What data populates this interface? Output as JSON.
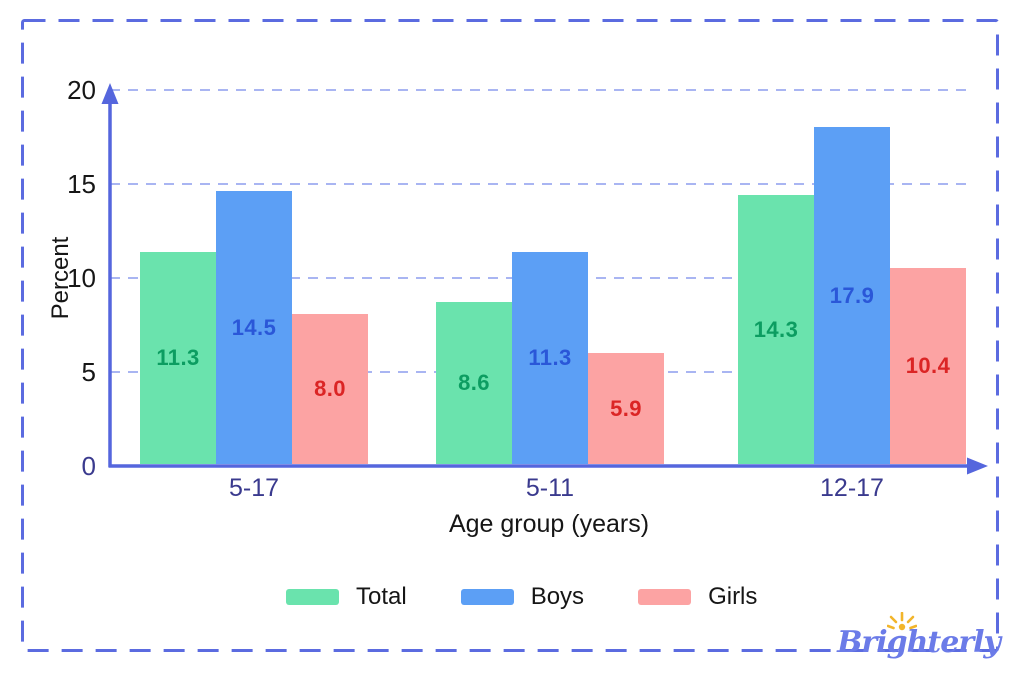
{
  "chart_data": {
    "type": "bar",
    "title": "",
    "xlabel": "Age group (years)",
    "ylabel": "Percent",
    "categories": [
      "5-17",
      "5-11",
      "12-17"
    ],
    "series": [
      {
        "name": "Total",
        "color": "#6AE3AD",
        "label_color": "#0C9D61",
        "values": [
          11.3,
          8.6,
          14.3
        ],
        "value_labels": [
          "11.3",
          "8.6",
          "14.3"
        ]
      },
      {
        "name": "Boys",
        "color": "#5C9FF5",
        "label_color": "#2A57D8",
        "values": [
          14.5,
          11.3,
          17.9
        ],
        "value_labels": [
          "14.5",
          "11.3",
          "17.9"
        ]
      },
      {
        "name": "Girls",
        "color": "#FCA3A3",
        "label_color": "#DB2525",
        "values": [
          8.0,
          5.9,
          10.4
        ],
        "value_labels": [
          "8.0",
          "5.9",
          "10.4"
        ]
      }
    ],
    "y_ticks": [
      0,
      5,
      10,
      15,
      20
    ],
    "ylim": [
      0,
      20
    ],
    "grid": "horizontal dashed gridlines at 5, 10, 15, 20",
    "legend_position": "bottom"
  },
  "colors": {
    "axis": "#5566DD",
    "grid": "#A9B5F2",
    "frame_border": "#5B6BE0",
    "tick_label": "#161616",
    "tick_zero_label": "#3A3A8E",
    "category_label": "#3A3A8E"
  },
  "brand": {
    "logo_text": "Brighterly",
    "logo_color": "#6B7BE8",
    "sun_color": "#F2B52B"
  }
}
